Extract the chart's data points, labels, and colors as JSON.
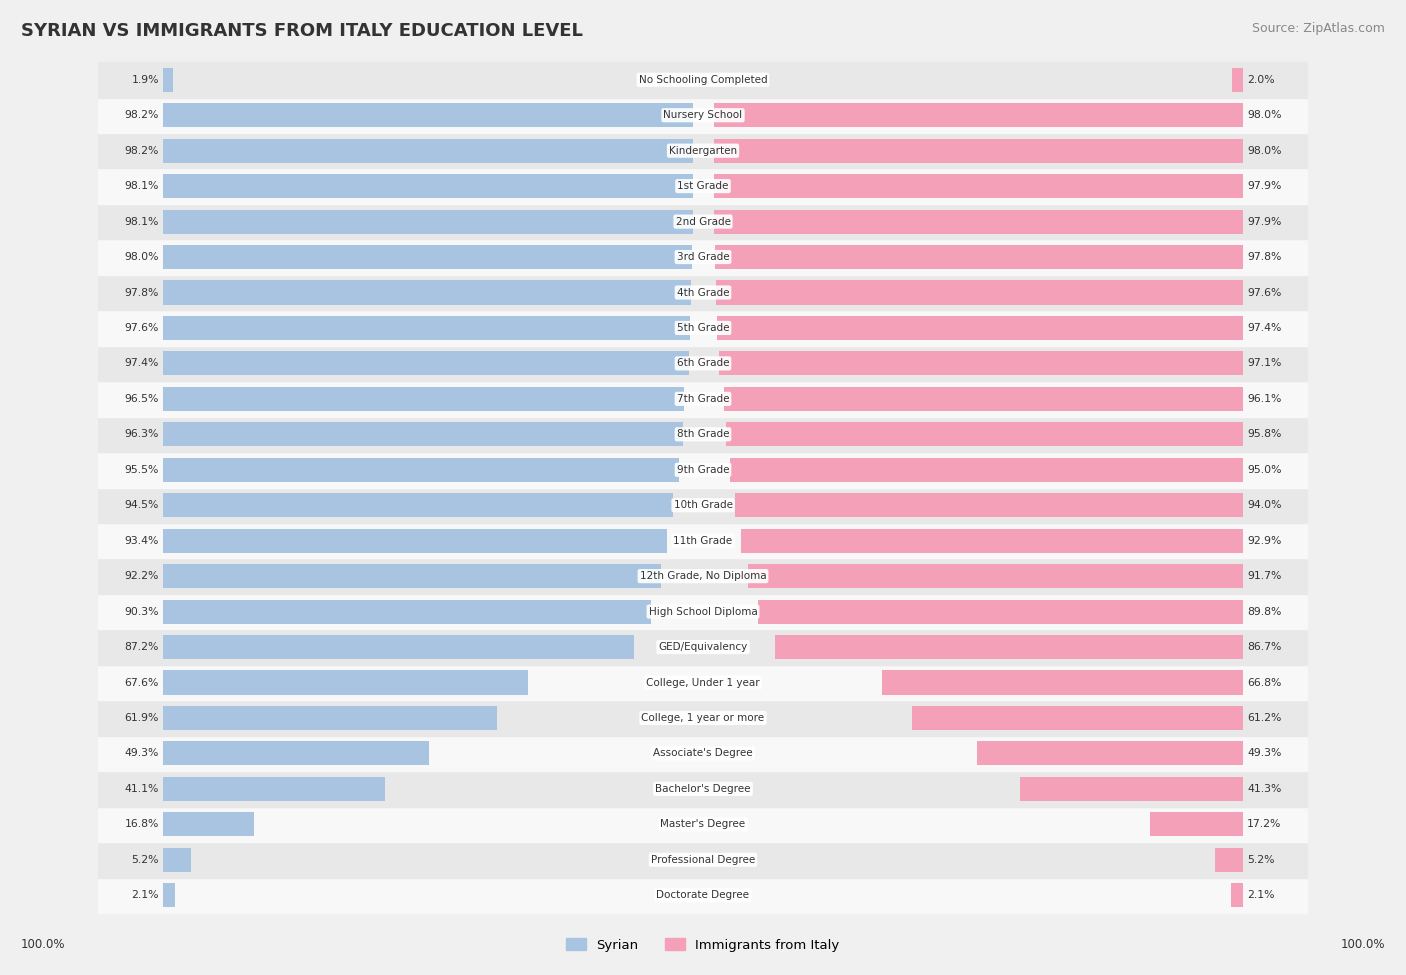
{
  "title": "SYRIAN VS IMMIGRANTS FROM ITALY EDUCATION LEVEL",
  "source": "Source: ZipAtlas.com",
  "categories": [
    "No Schooling Completed",
    "Nursery School",
    "Kindergarten",
    "1st Grade",
    "2nd Grade",
    "3rd Grade",
    "4th Grade",
    "5th Grade",
    "6th Grade",
    "7th Grade",
    "8th Grade",
    "9th Grade",
    "10th Grade",
    "11th Grade",
    "12th Grade, No Diploma",
    "High School Diploma",
    "GED/Equivalency",
    "College, Under 1 year",
    "College, 1 year or more",
    "Associate's Degree",
    "Bachelor's Degree",
    "Master's Degree",
    "Professional Degree",
    "Doctorate Degree"
  ],
  "syrian": [
    1.9,
    98.2,
    98.2,
    98.1,
    98.1,
    98.0,
    97.8,
    97.6,
    97.4,
    96.5,
    96.3,
    95.5,
    94.5,
    93.4,
    92.2,
    90.3,
    87.2,
    67.6,
    61.9,
    49.3,
    41.1,
    16.8,
    5.2,
    2.1
  ],
  "italy": [
    2.0,
    98.0,
    98.0,
    97.9,
    97.9,
    97.8,
    97.6,
    97.4,
    97.1,
    96.1,
    95.8,
    95.0,
    94.0,
    92.9,
    91.7,
    89.8,
    86.7,
    66.8,
    61.2,
    49.3,
    41.3,
    17.2,
    5.2,
    2.1
  ],
  "syrian_color": "#a8c4e0",
  "italy_color": "#f4a0b8",
  "background_color": "#f0f0f0",
  "row_bg_light": "#f8f8f8",
  "row_bg_dark": "#e8e8e8",
  "legend_syrian": "Syrian",
  "legend_italy": "Immigrants from Italy",
  "max_value": 100.0
}
